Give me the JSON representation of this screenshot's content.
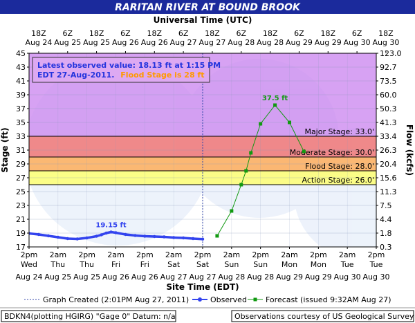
{
  "chart_data": {
    "type": "line",
    "title": "RARITAN RIVER AT BOUND BROOK",
    "top_axis_title": "Universal Time (UTC)",
    "bottom_axis_title": "Site Time (EDT)",
    "ylabel": "Stage (ft)",
    "ylabel_right": "Flow (kcfs)",
    "ylim": [
      17,
      45
    ],
    "xlim": [
      "Aug 24 2pm",
      "Aug 30 2pm"
    ],
    "grid": true,
    "y_ticks": [
      17,
      19,
      21,
      23,
      25,
      27,
      29,
      31,
      33,
      35,
      37,
      39,
      41,
      43,
      45
    ],
    "right_ticks": [
      {
        "stage": 17,
        "label": "0.3"
      },
      {
        "stage": 19,
        "label": "1.8"
      },
      {
        "stage": 21,
        "label": "4.4"
      },
      {
        "stage": 23,
        "label": "7.5"
      },
      {
        "stage": 25,
        "label": "11.3"
      },
      {
        "stage": 27,
        "label": "15.6"
      },
      {
        "stage": 29,
        "label": "20.4"
      },
      {
        "stage": 31,
        "label": "26.3"
      },
      {
        "stage": 33,
        "label": "33.4"
      },
      {
        "stage": 35,
        "label": "41.3"
      },
      {
        "stage": 37,
        "label": "50.3"
      },
      {
        "stage": 39,
        "label": "60.0"
      },
      {
        "stage": 41,
        "label": "73.5"
      },
      {
        "stage": 43,
        "label": "92.7"
      },
      {
        "stage": 45,
        "label": "123.0"
      }
    ],
    "top_ticks": [
      {
        "hours": 4,
        "line1": "18Z",
        "line2": "Aug 24"
      },
      {
        "hours": 16,
        "line1": "6Z",
        "line2": "Aug 25"
      },
      {
        "hours": 28,
        "line1": "18Z",
        "line2": "Aug 25"
      },
      {
        "hours": 40,
        "line1": "6Z",
        "line2": "Aug 26"
      },
      {
        "hours": 52,
        "line1": "18Z",
        "line2": "Aug 26"
      },
      {
        "hours": 64,
        "line1": "6Z",
        "line2": "Aug 27"
      },
      {
        "hours": 76,
        "line1": "18Z",
        "line2": "Aug 27"
      },
      {
        "hours": 88,
        "line1": "6Z",
        "line2": "Aug 28"
      },
      {
        "hours": 100,
        "line1": "18Z",
        "line2": "Aug 28"
      },
      {
        "hours": 112,
        "line1": "6Z",
        "line2": "Aug 29"
      },
      {
        "hours": 124,
        "line1": "18Z",
        "line2": "Aug 29"
      },
      {
        "hours": 136,
        "line1": "6Z",
        "line2": "Aug 30"
      },
      {
        "hours": 148,
        "line1": "18Z",
        "line2": "Aug 30"
      }
    ],
    "bottom_ticks": [
      {
        "hours": 0,
        "line1": "2pm",
        "line2": "Wed",
        "line3": "Aug 24"
      },
      {
        "hours": 12,
        "line1": "2am",
        "line2": "Thu",
        "line3": "Aug 25"
      },
      {
        "hours": 24,
        "line1": "2pm",
        "line2": "Thu",
        "line3": "Aug 25"
      },
      {
        "hours": 36,
        "line1": "2am",
        "line2": "Fri",
        "line3": "Aug 26"
      },
      {
        "hours": 48,
        "line1": "2pm",
        "line2": "Fri",
        "line3": "Aug 26"
      },
      {
        "hours": 60,
        "line1": "2am",
        "line2": "Sat",
        "line3": "Aug 27"
      },
      {
        "hours": 72,
        "line1": "2pm",
        "line2": "Sat",
        "line3": "Aug 27"
      },
      {
        "hours": 84,
        "line1": "2am",
        "line2": "Sun",
        "line3": "Aug 28"
      },
      {
        "hours": 96,
        "line1": "2pm",
        "line2": "Sun",
        "line3": "Aug 28"
      },
      {
        "hours": 108,
        "line1": "2am",
        "line2": "Mon",
        "line3": "Aug 29"
      },
      {
        "hours": 120,
        "line1": "2pm",
        "line2": "Mon",
        "line3": "Aug 29"
      },
      {
        "hours": 132,
        "line1": "2am",
        "line2": "Tue",
        "line3": "Aug 30"
      },
      {
        "hours": 144,
        "line1": "2pm",
        "line2": "Tue",
        "line3": "Aug 30"
      }
    ],
    "stage_bands": [
      {
        "name": "Major Stage: 33.0'",
        "from": 33,
        "to": 45,
        "color": "#cc88f0"
      },
      {
        "name": "Moderate Stage: 30.0'",
        "from": 30,
        "to": 33,
        "color": "#f06a6a"
      },
      {
        "name": "Flood Stage: 28.0'",
        "from": 28,
        "to": 30,
        "color": "#ffa64d"
      },
      {
        "name": "Action Stage: 26.0'",
        "from": 26,
        "to": 28,
        "color": "#ffff66"
      }
    ],
    "graph_created_hours": 72,
    "observed_color": "#3344ee",
    "forecast_color": "#119911",
    "series": [
      {
        "name": "Observed",
        "x_hours": [
          0,
          4,
          8,
          12,
          16,
          20,
          24,
          28,
          30,
          32,
          34,
          36,
          40,
          44,
          48,
          52,
          56,
          60,
          64,
          68,
          72
        ],
        "values": [
          18.95,
          18.8,
          18.6,
          18.4,
          18.2,
          18.15,
          18.3,
          18.55,
          18.75,
          19.0,
          19.15,
          19.05,
          18.8,
          18.65,
          18.55,
          18.5,
          18.45,
          18.35,
          18.3,
          18.2,
          18.13
        ]
      },
      {
        "name": "Forecast (issued 9:32AM Aug 27)",
        "x_hours": [
          78,
          84,
          88,
          90,
          92,
          96,
          102,
          108,
          114
        ],
        "values": [
          18.6,
          22.2,
          26.0,
          28.0,
          30.6,
          34.8,
          37.5,
          35.0,
          30.8
        ]
      }
    ],
    "annotations": [
      {
        "text": "19.15 ft",
        "x_hours": 34,
        "y": 19.15,
        "color": "#3344ee"
      },
      {
        "text": "37.5 ft",
        "x_hours": 102,
        "y": 37.5,
        "color": "#119911"
      }
    ],
    "info_box": {
      "line1": "Latest observed value: 18.13 ft at 1:15 PM",
      "line2a": "EDT 27-Aug-2011.",
      "line2b": "Flood Stage is 28 ft"
    },
    "legend": {
      "graph_created": "Graph Created (2:01PM Aug 27, 2011)",
      "observed": "Observed",
      "forecast": "Forecast (issued 9:32AM Aug 27)"
    },
    "footer": {
      "left": "BDKN4(plotting HGIRG) \"Gage 0\" Datum: n/a",
      "right": "Observations courtesy of US Geological Survey"
    }
  }
}
